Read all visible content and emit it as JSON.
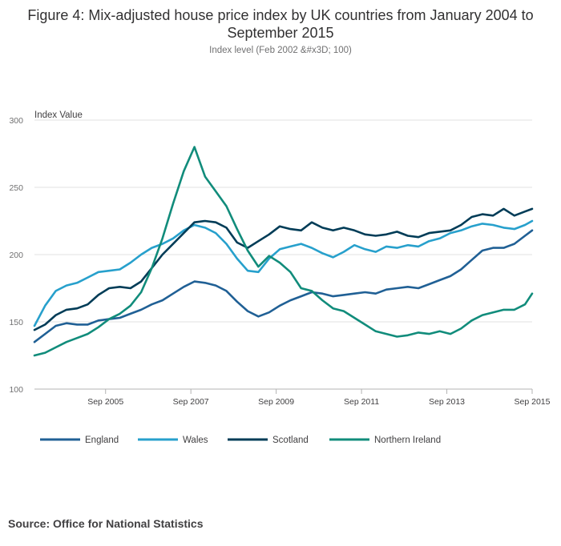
{
  "title": "Figure 4: Mix-adjusted house price index by UK countries from January 2004 to September 2015",
  "subtitle": "Index level (Feb 2002 &#x3D; 100)",
  "source": "Source: Office for National Statistics",
  "chart_data": {
    "type": "line",
    "ylabel": "Index Value",
    "ylim": [
      100,
      300
    ],
    "yticks": [
      100,
      150,
      200,
      250,
      300
    ],
    "xrange": [
      "2004-01",
      "2015-09"
    ],
    "xticks": [
      {
        "month": "2005-09",
        "label": "Sep 2005"
      },
      {
        "month": "2007-09",
        "label": "Sep 2007"
      },
      {
        "month": "2009-09",
        "label": "Sep 2009"
      },
      {
        "month": "2011-09",
        "label": "Sep 2011"
      },
      {
        "month": "2013-09",
        "label": "Sep 2013"
      },
      {
        "month": "2015-09",
        "label": "Sep 2015"
      }
    ],
    "grid": true,
    "legend_position": "bottom",
    "series": [
      {
        "name": "England",
        "color": "#206095",
        "points": [
          [
            "2004-01",
            135
          ],
          [
            "2004-04",
            141
          ],
          [
            "2004-07",
            147
          ],
          [
            "2004-10",
            149
          ],
          [
            "2005-01",
            148
          ],
          [
            "2005-04",
            148
          ],
          [
            "2005-07",
            151
          ],
          [
            "2005-10",
            152
          ],
          [
            "2006-01",
            153
          ],
          [
            "2006-04",
            156
          ],
          [
            "2006-07",
            159
          ],
          [
            "2006-10",
            163
          ],
          [
            "2007-01",
            166
          ],
          [
            "2007-04",
            171
          ],
          [
            "2007-07",
            176
          ],
          [
            "2007-10",
            180
          ],
          [
            "2008-01",
            179
          ],
          [
            "2008-04",
            177
          ],
          [
            "2008-07",
            173
          ],
          [
            "2008-10",
            165
          ],
          [
            "2009-01",
            158
          ],
          [
            "2009-04",
            154
          ],
          [
            "2009-07",
            157
          ],
          [
            "2009-10",
            162
          ],
          [
            "2010-01",
            166
          ],
          [
            "2010-04",
            169
          ],
          [
            "2010-07",
            172
          ],
          [
            "2010-10",
            171
          ],
          [
            "2011-01",
            169
          ],
          [
            "2011-04",
            170
          ],
          [
            "2011-07",
            171
          ],
          [
            "2011-10",
            172
          ],
          [
            "2012-01",
            171
          ],
          [
            "2012-04",
            174
          ],
          [
            "2012-07",
            175
          ],
          [
            "2012-10",
            176
          ],
          [
            "2013-01",
            175
          ],
          [
            "2013-04",
            178
          ],
          [
            "2013-07",
            181
          ],
          [
            "2013-10",
            184
          ],
          [
            "2014-01",
            189
          ],
          [
            "2014-04",
            196
          ],
          [
            "2014-07",
            203
          ],
          [
            "2014-10",
            205
          ],
          [
            "2015-01",
            205
          ],
          [
            "2015-04",
            208
          ],
          [
            "2015-07",
            214
          ],
          [
            "2015-09",
            218
          ]
        ]
      },
      {
        "name": "Wales",
        "color": "#27a0cc",
        "points": [
          [
            "2004-01",
            147
          ],
          [
            "2004-04",
            162
          ],
          [
            "2004-07",
            173
          ],
          [
            "2004-10",
            177
          ],
          [
            "2005-01",
            179
          ],
          [
            "2005-04",
            183
          ],
          [
            "2005-07",
            187
          ],
          [
            "2005-10",
            188
          ],
          [
            "2006-01",
            189
          ],
          [
            "2006-04",
            194
          ],
          [
            "2006-07",
            200
          ],
          [
            "2006-10",
            205
          ],
          [
            "2007-01",
            208
          ],
          [
            "2007-04",
            212
          ],
          [
            "2007-07",
            218
          ],
          [
            "2007-10",
            222
          ],
          [
            "2008-01",
            220
          ],
          [
            "2008-04",
            216
          ],
          [
            "2008-07",
            208
          ],
          [
            "2008-10",
            197
          ],
          [
            "2009-01",
            188
          ],
          [
            "2009-04",
            187
          ],
          [
            "2009-07",
            197
          ],
          [
            "2009-10",
            204
          ],
          [
            "2010-01",
            206
          ],
          [
            "2010-04",
            208
          ],
          [
            "2010-07",
            205
          ],
          [
            "2010-10",
            201
          ],
          [
            "2011-01",
            198
          ],
          [
            "2011-04",
            202
          ],
          [
            "2011-07",
            207
          ],
          [
            "2011-10",
            204
          ],
          [
            "2012-01",
            202
          ],
          [
            "2012-04",
            206
          ],
          [
            "2012-07",
            205
          ],
          [
            "2012-10",
            207
          ],
          [
            "2013-01",
            206
          ],
          [
            "2013-04",
            210
          ],
          [
            "2013-07",
            212
          ],
          [
            "2013-10",
            216
          ],
          [
            "2014-01",
            218
          ],
          [
            "2014-04",
            221
          ],
          [
            "2014-07",
            223
          ],
          [
            "2014-10",
            222
          ],
          [
            "2015-01",
            220
          ],
          [
            "2015-04",
            219
          ],
          [
            "2015-07",
            222
          ],
          [
            "2015-09",
            225
          ]
        ]
      },
      {
        "name": "Scotland",
        "color": "#003c57",
        "points": [
          [
            "2004-01",
            144
          ],
          [
            "2004-04",
            148
          ],
          [
            "2004-07",
            155
          ],
          [
            "2004-10",
            159
          ],
          [
            "2005-01",
            160
          ],
          [
            "2005-04",
            163
          ],
          [
            "2005-07",
            170
          ],
          [
            "2005-10",
            175
          ],
          [
            "2006-01",
            176
          ],
          [
            "2006-04",
            175
          ],
          [
            "2006-07",
            180
          ],
          [
            "2006-10",
            190
          ],
          [
            "2007-01",
            200
          ],
          [
            "2007-04",
            208
          ],
          [
            "2007-07",
            216
          ],
          [
            "2007-10",
            224
          ],
          [
            "2008-01",
            225
          ],
          [
            "2008-04",
            224
          ],
          [
            "2008-07",
            220
          ],
          [
            "2008-10",
            209
          ],
          [
            "2009-01",
            205
          ],
          [
            "2009-04",
            210
          ],
          [
            "2009-07",
            215
          ],
          [
            "2009-10",
            221
          ],
          [
            "2010-01",
            219
          ],
          [
            "2010-04",
            218
          ],
          [
            "2010-07",
            224
          ],
          [
            "2010-10",
            220
          ],
          [
            "2011-01",
            218
          ],
          [
            "2011-04",
            220
          ],
          [
            "2011-07",
            218
          ],
          [
            "2011-10",
            215
          ],
          [
            "2012-01",
            214
          ],
          [
            "2012-04",
            215
          ],
          [
            "2012-07",
            217
          ],
          [
            "2012-10",
            214
          ],
          [
            "2013-01",
            213
          ],
          [
            "2013-04",
            216
          ],
          [
            "2013-07",
            217
          ],
          [
            "2013-10",
            218
          ],
          [
            "2014-01",
            222
          ],
          [
            "2014-04",
            228
          ],
          [
            "2014-07",
            230
          ],
          [
            "2014-10",
            229
          ],
          [
            "2015-01",
            234
          ],
          [
            "2015-04",
            229
          ],
          [
            "2015-07",
            232
          ],
          [
            "2015-09",
            234
          ]
        ]
      },
      {
        "name": "Northern Ireland",
        "color": "#118c7b",
        "points": [
          [
            "2004-01",
            125
          ],
          [
            "2004-04",
            127
          ],
          [
            "2004-07",
            131
          ],
          [
            "2004-10",
            135
          ],
          [
            "2005-01",
            138
          ],
          [
            "2005-04",
            141
          ],
          [
            "2005-07",
            146
          ],
          [
            "2005-10",
            152
          ],
          [
            "2006-01",
            156
          ],
          [
            "2006-04",
            162
          ],
          [
            "2006-07",
            172
          ],
          [
            "2006-10",
            190
          ],
          [
            "2007-01",
            212
          ],
          [
            "2007-04",
            238
          ],
          [
            "2007-07",
            262
          ],
          [
            "2007-10",
            280
          ],
          [
            "2008-01",
            258
          ],
          [
            "2008-04",
            247
          ],
          [
            "2008-07",
            236
          ],
          [
            "2008-10",
            219
          ],
          [
            "2009-01",
            203
          ],
          [
            "2009-04",
            191
          ],
          [
            "2009-07",
            199
          ],
          [
            "2009-10",
            194
          ],
          [
            "2010-01",
            187
          ],
          [
            "2010-04",
            175
          ],
          [
            "2010-07",
            173
          ],
          [
            "2010-10",
            166
          ],
          [
            "2011-01",
            160
          ],
          [
            "2011-04",
            158
          ],
          [
            "2011-07",
            153
          ],
          [
            "2011-10",
            148
          ],
          [
            "2012-01",
            143
          ],
          [
            "2012-04",
            141
          ],
          [
            "2012-07",
            139
          ],
          [
            "2012-10",
            140
          ],
          [
            "2013-01",
            142
          ],
          [
            "2013-04",
            141
          ],
          [
            "2013-07",
            143
          ],
          [
            "2013-10",
            141
          ],
          [
            "2014-01",
            145
          ],
          [
            "2014-04",
            151
          ],
          [
            "2014-07",
            155
          ],
          [
            "2014-10",
            157
          ],
          [
            "2015-01",
            159
          ],
          [
            "2015-04",
            159
          ],
          [
            "2015-07",
            163
          ],
          [
            "2015-09",
            171
          ]
        ]
      }
    ]
  }
}
